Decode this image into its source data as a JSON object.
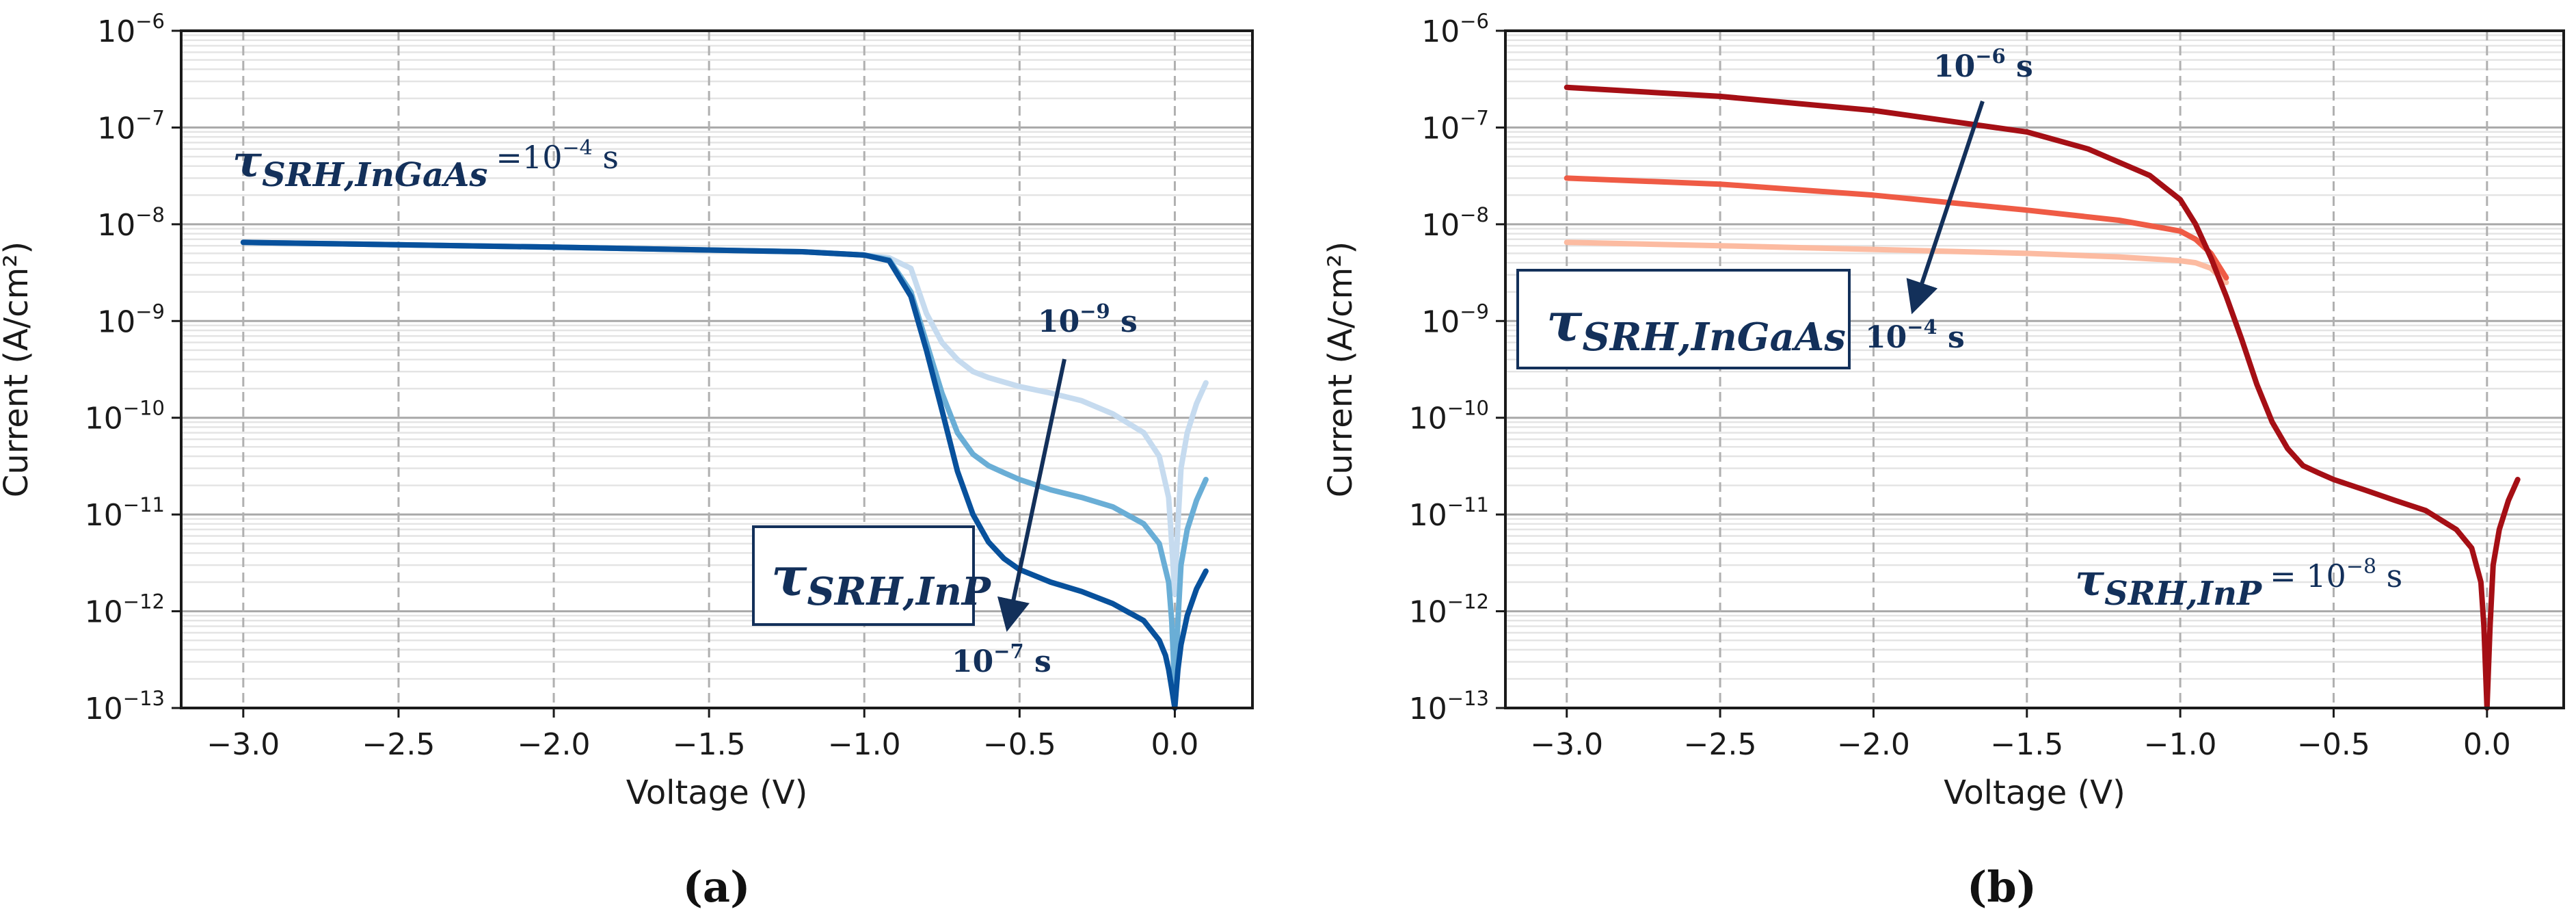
{
  "chart_data": [
    {
      "type": "line",
      "panel_label": "(a)",
      "xlabel": "Voltage (V)",
      "ylabel": "Current (A/cm²)",
      "xlim": [
        -3.2,
        0.25
      ],
      "ylim_exponent": [
        -13,
        -6
      ],
      "yscale": "log",
      "grid": true,
      "x_ticks": [
        "−3.0",
        "−2.5",
        "−2.0",
        "−1.5",
        "−1.0",
        "−0.5",
        "0.0"
      ],
      "y_tick_base": "10",
      "y_tick_exponents": [
        "−13",
        "−12",
        "−11",
        "−10",
        "−9",
        "−8",
        "−7",
        "−6"
      ],
      "annotations": {
        "fixed_tau_symbol": "τ",
        "fixed_tau_subscript": "SRH,InGaAs",
        "fixed_tau_value": "=10",
        "fixed_tau_exp": "−4",
        "fixed_tau_unit": " s",
        "varied_tau_symbol": "τ",
        "varied_tau_subscript": "SRH,InP",
        "arrow_start_label": "10",
        "arrow_start_exp": "−9",
        "arrow_start_unit": " s",
        "arrow_end_label": "10",
        "arrow_end_exp": "−7",
        "arrow_end_unit": " s"
      },
      "series": [
        {
          "color": "#c6dbef",
          "x": [
            -3.0,
            -2.0,
            -1.2,
            -1.0,
            -0.92,
            -0.85,
            -0.8,
            -0.75,
            -0.7,
            -0.65,
            -0.6,
            -0.5,
            -0.4,
            -0.3,
            -0.2,
            -0.1,
            -0.05,
            -0.02,
            -0.01,
            0.0,
            0.01,
            0.02,
            0.04,
            0.07,
            0.1
          ],
          "y": [
            6.5e-09,
            5.8e-09,
            5.2e-09,
            4.8e-09,
            4.5e-09,
            3.5e-09,
            1.2e-09,
            6e-10,
            4e-10,
            3e-10,
            2.6e-10,
            2.1e-10,
            1.8e-10,
            1.5e-10,
            1.1e-10,
            7e-11,
            4e-11,
            1.5e-11,
            5e-12,
            1.5e-12,
            8e-12,
            3e-11,
            7e-11,
            1.4e-10,
            2.3e-10
          ]
        },
        {
          "color": "#6aaed6",
          "x": [
            -3.0,
            -2.0,
            -1.2,
            -1.0,
            -0.92,
            -0.85,
            -0.8,
            -0.75,
            -0.7,
            -0.65,
            -0.6,
            -0.55,
            -0.5,
            -0.4,
            -0.3,
            -0.2,
            -0.1,
            -0.05,
            -0.02,
            -0.01,
            0.0,
            0.01,
            0.02,
            0.04,
            0.07,
            0.1
          ],
          "y": [
            6.5e-09,
            5.8e-09,
            5.2e-09,
            4.8e-09,
            4.3e-09,
            2e-09,
            6e-10,
            1.8e-10,
            7e-11,
            4.2e-11,
            3.2e-11,
            2.7e-11,
            2.3e-11,
            1.8e-11,
            1.5e-11,
            1.2e-11,
            8e-12,
            5e-12,
            2e-12,
            8e-13,
            1.5e-13,
            8e-13,
            3e-12,
            7e-12,
            1.4e-11,
            2.3e-11
          ]
        },
        {
          "color": "#08519c",
          "x": [
            -3.0,
            -2.0,
            -1.2,
            -1.0,
            -0.92,
            -0.85,
            -0.8,
            -0.75,
            -0.7,
            -0.65,
            -0.6,
            -0.55,
            -0.5,
            -0.4,
            -0.3,
            -0.2,
            -0.1,
            -0.05,
            -0.03,
            -0.02,
            -0.01,
            0.0,
            0.01,
            0.02,
            0.04,
            0.07,
            0.1
          ],
          "y": [
            6.5e-09,
            5.8e-09,
            5.2e-09,
            4.8e-09,
            4.2e-09,
            1.8e-09,
            5e-10,
            1.2e-10,
            2.8e-11,
            1e-11,
            5.2e-12,
            3.5e-12,
            2.7e-12,
            2e-12,
            1.6e-12,
            1.2e-12,
            8e-13,
            5e-13,
            3.5e-13,
            2.5e-13,
            1.6e-13,
            1e-13,
            2.5e-13,
            4.5e-13,
            9e-13,
            1.7e-12,
            2.6e-12
          ]
        }
      ]
    },
    {
      "type": "line",
      "panel_label": "(b)",
      "xlabel": "Voltage (V)",
      "ylabel": "Current (A/cm²)",
      "xlim": [
        -3.2,
        0.25
      ],
      "ylim_exponent": [
        -13,
        -6
      ],
      "yscale": "log",
      "grid": true,
      "x_ticks": [
        "−3.0",
        "−2.5",
        "−2.0",
        "−1.5",
        "−1.0",
        "−0.5",
        "0.0"
      ],
      "y_tick_base": "10",
      "y_tick_exponents": [
        "−13",
        "−12",
        "−11",
        "−10",
        "−9",
        "−8",
        "−7",
        "−6"
      ],
      "annotations": {
        "fixed_tau_symbol": "τ",
        "fixed_tau_subscript": "SRH,InP",
        "fixed_tau_value": "= 10",
        "fixed_tau_exp": "−8",
        "fixed_tau_unit": " s",
        "varied_tau_symbol": "τ",
        "varied_tau_subscript": "SRH,InGaAs",
        "arrow_start_label": "10",
        "arrow_start_exp": "−6",
        "arrow_start_unit": " s",
        "arrow_end_label": "10",
        "arrow_end_exp": "−4",
        "arrow_end_unit": " s"
      },
      "series": [
        {
          "color": "#fcbba1",
          "x": [
            -3.0,
            -2.5,
            -2.0,
            -1.5,
            -1.2,
            -1.0,
            -0.95,
            -0.9,
            -0.85
          ],
          "y": [
            6.5e-09,
            6e-09,
            5.5e-09,
            5e-09,
            4.6e-09,
            4.2e-09,
            4e-09,
            3.5e-09,
            2.5e-09
          ]
        },
        {
          "color": "#ef5b45",
          "x": [
            -3.0,
            -2.5,
            -2.0,
            -1.5,
            -1.2,
            -1.0,
            -0.95,
            -0.9,
            -0.85
          ],
          "y": [
            3e-08,
            2.6e-08,
            2e-08,
            1.4e-08,
            1.1e-08,
            8.5e-09,
            7e-09,
            5e-09,
            2.8e-09
          ]
        },
        {
          "color": "#a50f15",
          "x": [
            -3.0,
            -2.5,
            -2.0,
            -1.5,
            -1.3,
            -1.1,
            -1.0,
            -0.95,
            -0.9,
            -0.85,
            -0.8,
            -0.75,
            -0.7,
            -0.65,
            -0.6,
            -0.55,
            -0.5,
            -0.4,
            -0.3,
            -0.2,
            -0.1,
            -0.05,
            -0.02,
            -0.01,
            0.0,
            0.01,
            0.02,
            0.04,
            0.07,
            0.1
          ],
          "y": [
            2.6e-07,
            2.1e-07,
            1.5e-07,
            9e-08,
            6e-08,
            3.2e-08,
            1.8e-08,
            1e-08,
            4.5e-09,
            1.8e-09,
            6.5e-10,
            2.2e-10,
            9e-11,
            4.8e-11,
            3.2e-11,
            2.7e-11,
            2.3e-11,
            1.8e-11,
            1.4e-11,
            1.1e-11,
            7e-12,
            4.5e-12,
            2e-12,
            7e-13,
            1e-13,
            7e-13,
            3e-12,
            7e-12,
            1.4e-11,
            2.3e-11
          ]
        }
      ]
    }
  ]
}
